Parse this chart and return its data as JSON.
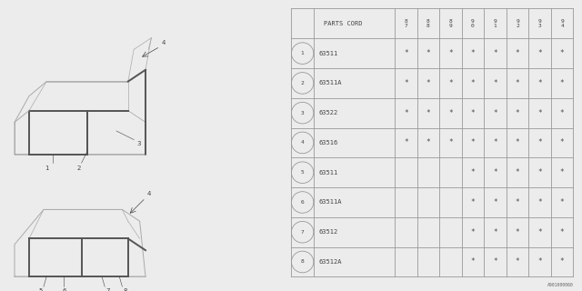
{
  "diagram_code": "A901000060",
  "bg_color": "#ececec",
  "table_header_years": [
    "8\n7",
    "8\n8",
    "8\n9",
    "9\n0",
    "9\n1",
    "9\n2",
    "9\n3",
    "9\n4"
  ],
  "rows": [
    {
      "num": "1",
      "part": "63511",
      "marks": [
        1,
        1,
        1,
        1,
        1,
        1,
        1,
        1
      ]
    },
    {
      "num": "2",
      "part": "63511A",
      "marks": [
        1,
        1,
        1,
        1,
        1,
        1,
        1,
        1
      ]
    },
    {
      "num": "3",
      "part": "63522",
      "marks": [
        1,
        1,
        1,
        1,
        1,
        1,
        1,
        1
      ]
    },
    {
      "num": "4",
      "part": "63516",
      "marks": [
        1,
        1,
        1,
        1,
        1,
        1,
        1,
        1
      ]
    },
    {
      "num": "5",
      "part": "63511",
      "marks": [
        0,
        0,
        0,
        1,
        1,
        1,
        1,
        1
      ]
    },
    {
      "num": "6",
      "part": "63511A",
      "marks": [
        0,
        0,
        0,
        1,
        1,
        1,
        1,
        1
      ]
    },
    {
      "num": "7",
      "part": "63512",
      "marks": [
        0,
        0,
        0,
        1,
        1,
        1,
        1,
        1
      ]
    },
    {
      "num": "8",
      "part": "63512A",
      "marks": [
        0,
        0,
        0,
        1,
        1,
        1,
        1,
        1
      ]
    }
  ],
  "car_line_color": "#aaaaaa",
  "strip_color": "#555555",
  "text_color": "#444444",
  "table_line_color": "#999999",
  "mark_symbol": "*"
}
